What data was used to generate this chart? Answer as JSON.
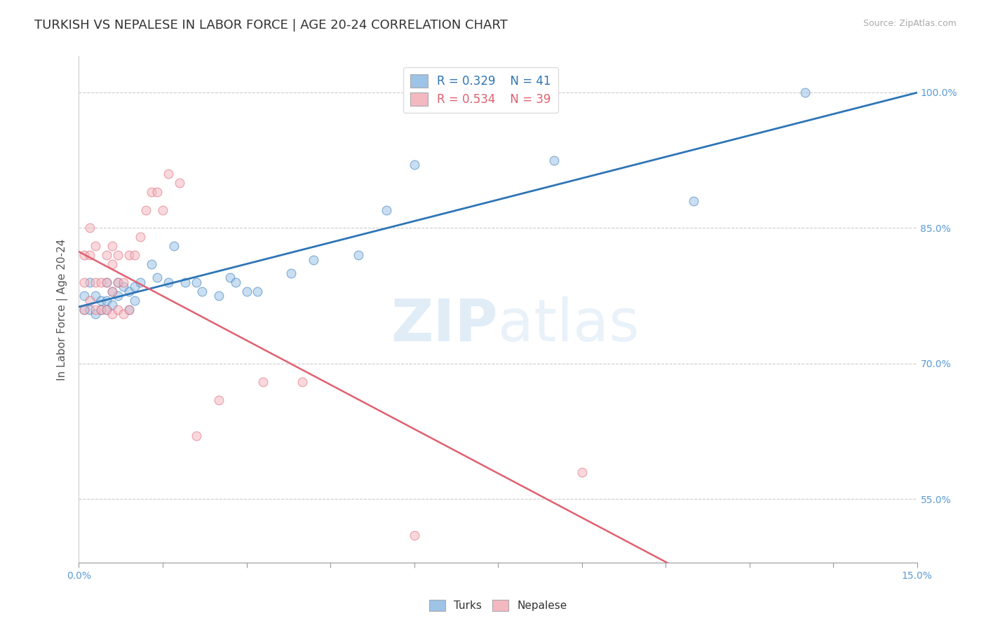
{
  "title": "TURKISH VS NEPALESE IN LABOR FORCE | AGE 20-24 CORRELATION CHART",
  "source_text": "Source: ZipAtlas.com",
  "ylabel": "In Labor Force | Age 20-24",
  "xlim": [
    0.0,
    0.15
  ],
  "ylim": [
    0.48,
    1.04
  ],
  "xticks": [
    0.0,
    0.015,
    0.03,
    0.045,
    0.06,
    0.075,
    0.09,
    0.105,
    0.12,
    0.135,
    0.15
  ],
  "xticklabels_ends": [
    "0.0%",
    "15.0%"
  ],
  "yticks": [
    0.55,
    0.7,
    0.85,
    1.0
  ],
  "yticklabels": [
    "55.0%",
    "70.0%",
    "85.0%",
    "100.0%"
  ],
  "right_ytick_color": "#5b9bd5",
  "turks_color": "#9dc3e6",
  "turks_line_color": "#2e75b6",
  "nepalese_color": "#f4b8c1",
  "nepalese_line_color": "#e06070",
  "R_turks": 0.329,
  "N_turks": 41,
  "R_nepalese": 0.534,
  "N_nepalese": 39,
  "legend_label_turks": "Turks",
  "legend_label_nepalese": "Nepalese",
  "watermark_zip": "ZIP",
  "watermark_atlas": "atlas",
  "turks_x": [
    0.001,
    0.001,
    0.002,
    0.002,
    0.003,
    0.003,
    0.004,
    0.004,
    0.005,
    0.005,
    0.005,
    0.006,
    0.006,
    0.007,
    0.007,
    0.008,
    0.009,
    0.009,
    0.01,
    0.01,
    0.011,
    0.013,
    0.014,
    0.016,
    0.017,
    0.019,
    0.021,
    0.022,
    0.025,
    0.027,
    0.028,
    0.03,
    0.032,
    0.038,
    0.042,
    0.05,
    0.055,
    0.06,
    0.085,
    0.11,
    0.13
  ],
  "turks_y": [
    0.775,
    0.76,
    0.79,
    0.76,
    0.775,
    0.755,
    0.77,
    0.76,
    0.79,
    0.77,
    0.76,
    0.765,
    0.78,
    0.775,
    0.79,
    0.785,
    0.78,
    0.76,
    0.77,
    0.785,
    0.79,
    0.81,
    0.795,
    0.79,
    0.83,
    0.79,
    0.79,
    0.78,
    0.775,
    0.795,
    0.79,
    0.78,
    0.78,
    0.8,
    0.815,
    0.82,
    0.87,
    0.92,
    0.925,
    0.88,
    1.0
  ],
  "nepalese_x": [
    0.001,
    0.001,
    0.001,
    0.002,
    0.002,
    0.002,
    0.003,
    0.003,
    0.003,
    0.004,
    0.004,
    0.005,
    0.005,
    0.005,
    0.006,
    0.006,
    0.006,
    0.006,
    0.007,
    0.007,
    0.007,
    0.008,
    0.008,
    0.009,
    0.009,
    0.01,
    0.011,
    0.012,
    0.013,
    0.014,
    0.015,
    0.016,
    0.018,
    0.021,
    0.025,
    0.033,
    0.04,
    0.06,
    0.09
  ],
  "nepalese_y": [
    0.76,
    0.79,
    0.82,
    0.77,
    0.82,
    0.85,
    0.76,
    0.79,
    0.83,
    0.76,
    0.79,
    0.76,
    0.79,
    0.82,
    0.755,
    0.78,
    0.81,
    0.83,
    0.76,
    0.79,
    0.82,
    0.755,
    0.79,
    0.76,
    0.82,
    0.82,
    0.84,
    0.87,
    0.89,
    0.89,
    0.87,
    0.91,
    0.9,
    0.62,
    0.66,
    0.68,
    0.68,
    0.51,
    0.58
  ],
  "grid_color": "#cccccc",
  "background_color": "#ffffff",
  "title_fontsize": 13,
  "axis_label_fontsize": 11,
  "tick_fontsize": 10,
  "marker_size": 85,
  "marker_alpha": 0.55
}
